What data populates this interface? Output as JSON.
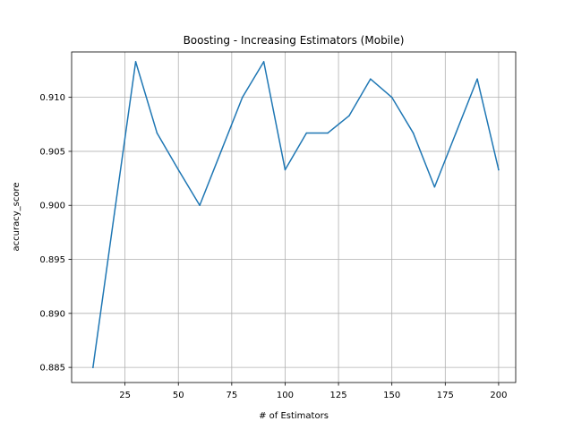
{
  "chart_data": {
    "type": "line",
    "title": "Boosting - Increasing Estimators (Mobile)",
    "xlabel": "# of Estimators",
    "ylabel": "accuracy_score",
    "xlim": [
      0,
      208
    ],
    "ylim": [
      0.8836,
      0.9142
    ],
    "xticks": [
      25,
      50,
      75,
      100,
      125,
      150,
      175,
      200
    ],
    "xtick_labels": [
      "25",
      "50",
      "75",
      "100",
      "125",
      "150",
      "175",
      "200"
    ],
    "yticks": [
      0.885,
      0.89,
      0.895,
      0.9,
      0.905,
      0.91
    ],
    "ytick_labels": [
      "0.885",
      "0.890",
      "0.895",
      "0.900",
      "0.905",
      "0.910"
    ],
    "grid": true,
    "series": [
      {
        "color": "#1f77b4",
        "x": [
          10,
          20,
          30,
          40,
          50,
          60,
          70,
          80,
          90,
          100,
          110,
          120,
          130,
          140,
          150,
          160,
          170,
          180,
          190,
          200
        ],
        "y": [
          0.885,
          0.8992,
          0.9133,
          0.9067,
          0.9033,
          0.9,
          0.905,
          0.91,
          0.9133,
          0.9033,
          0.9067,
          0.9067,
          0.9083,
          0.9117,
          0.91,
          0.9067,
          0.9017,
          0.9067,
          0.9117,
          0.9033
        ]
      }
    ]
  }
}
